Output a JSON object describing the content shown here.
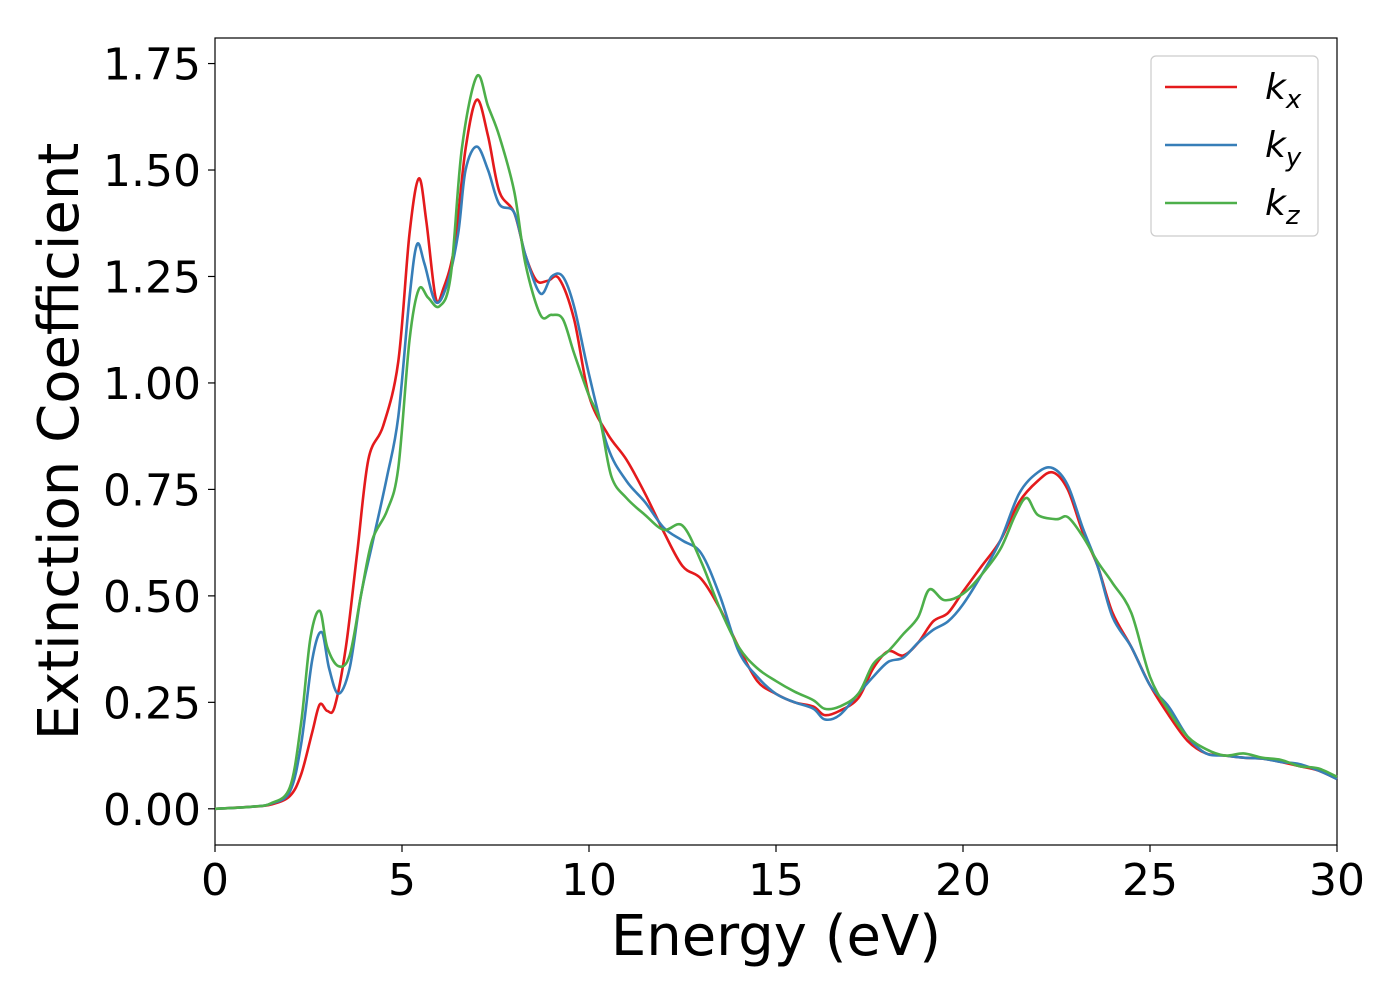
{
  "chart_data": {
    "type": "line",
    "title": "",
    "xlabel": "Energy (eV)",
    "ylabel": "Extinction Coefficient",
    "xlim": [
      0,
      30
    ],
    "ylim": [
      -0.085,
      1.81
    ],
    "xticks": [
      0,
      5,
      10,
      15,
      20,
      25,
      30
    ],
    "xtick_labels": [
      "0",
      "5",
      "10",
      "15",
      "20",
      "25",
      "30"
    ],
    "yticks": [
      0,
      0.25,
      0.5,
      0.75,
      1.0,
      1.25,
      1.5,
      1.75
    ],
    "ytick_labels": [
      "0.00",
      "0.25",
      "0.50",
      "0.75",
      "1.00",
      "1.25",
      "1.50",
      "1.75"
    ],
    "grid": false,
    "legend_position": "top-right",
    "series": [
      {
        "name": "k_x",
        "label_main": "k",
        "label_sub": "x",
        "color": "#e41a1c",
        "points": [
          [
            0,
            0.0
          ],
          [
            1.0,
            0.005
          ],
          [
            1.5,
            0.01
          ],
          [
            2.0,
            0.03
          ],
          [
            2.3,
            0.08
          ],
          [
            2.6,
            0.18
          ],
          [
            2.8,
            0.245
          ],
          [
            3.0,
            0.23
          ],
          [
            3.2,
            0.24
          ],
          [
            3.5,
            0.38
          ],
          [
            3.8,
            0.6
          ],
          [
            4.1,
            0.82
          ],
          [
            4.5,
            0.9
          ],
          [
            4.9,
            1.05
          ],
          [
            5.2,
            1.35
          ],
          [
            5.45,
            1.48
          ],
          [
            5.65,
            1.38
          ],
          [
            5.9,
            1.2
          ],
          [
            6.1,
            1.22
          ],
          [
            6.4,
            1.32
          ],
          [
            6.7,
            1.55
          ],
          [
            7.0,
            1.665
          ],
          [
            7.3,
            1.58
          ],
          [
            7.6,
            1.45
          ],
          [
            8.0,
            1.4
          ],
          [
            8.3,
            1.3
          ],
          [
            8.6,
            1.24
          ],
          [
            8.9,
            1.24
          ],
          [
            9.2,
            1.245
          ],
          [
            9.6,
            1.15
          ],
          [
            10.0,
            0.97
          ],
          [
            10.5,
            0.88
          ],
          [
            11.0,
            0.82
          ],
          [
            11.5,
            0.74
          ],
          [
            12.0,
            0.65
          ],
          [
            12.5,
            0.57
          ],
          [
            13.0,
            0.54
          ],
          [
            13.5,
            0.47
          ],
          [
            14.0,
            0.38
          ],
          [
            14.5,
            0.3
          ],
          [
            15.0,
            0.27
          ],
          [
            15.5,
            0.25
          ],
          [
            16.0,
            0.24
          ],
          [
            16.3,
            0.22
          ],
          [
            16.7,
            0.23
          ],
          [
            17.2,
            0.26
          ],
          [
            17.6,
            0.33
          ],
          [
            18.0,
            0.37
          ],
          [
            18.4,
            0.36
          ],
          [
            18.8,
            0.39
          ],
          [
            19.2,
            0.44
          ],
          [
            19.6,
            0.46
          ],
          [
            20.0,
            0.51
          ],
          [
            20.5,
            0.57
          ],
          [
            21.0,
            0.63
          ],
          [
            21.5,
            0.72
          ],
          [
            22.0,
            0.77
          ],
          [
            22.4,
            0.79
          ],
          [
            22.8,
            0.75
          ],
          [
            23.2,
            0.65
          ],
          [
            23.6,
            0.57
          ],
          [
            24.0,
            0.46
          ],
          [
            24.5,
            0.38
          ],
          [
            25.0,
            0.29
          ],
          [
            25.5,
            0.22
          ],
          [
            26.0,
            0.16
          ],
          [
            26.5,
            0.13
          ],
          [
            27.0,
            0.125
          ],
          [
            27.5,
            0.12
          ],
          [
            28.0,
            0.118
          ],
          [
            28.5,
            0.11
          ],
          [
            29.0,
            0.1
          ],
          [
            29.5,
            0.09
          ],
          [
            30.0,
            0.07
          ]
        ]
      },
      {
        "name": "k_y",
        "label_main": "k",
        "label_sub": "y",
        "color": "#377eb8",
        "points": [
          [
            0,
            0.0
          ],
          [
            1.0,
            0.005
          ],
          [
            1.5,
            0.012
          ],
          [
            2.0,
            0.04
          ],
          [
            2.3,
            0.15
          ],
          [
            2.6,
            0.35
          ],
          [
            2.85,
            0.415
          ],
          [
            3.05,
            0.33
          ],
          [
            3.3,
            0.27
          ],
          [
            3.6,
            0.33
          ],
          [
            3.9,
            0.5
          ],
          [
            4.2,
            0.62
          ],
          [
            4.6,
            0.78
          ],
          [
            4.9,
            0.92
          ],
          [
            5.2,
            1.2
          ],
          [
            5.4,
            1.325
          ],
          [
            5.6,
            1.28
          ],
          [
            5.9,
            1.19
          ],
          [
            6.2,
            1.23
          ],
          [
            6.5,
            1.35
          ],
          [
            6.7,
            1.5
          ],
          [
            7.0,
            1.555
          ],
          [
            7.3,
            1.5
          ],
          [
            7.6,
            1.42
          ],
          [
            8.0,
            1.4
          ],
          [
            8.3,
            1.3
          ],
          [
            8.7,
            1.21
          ],
          [
            9.0,
            1.25
          ],
          [
            9.3,
            1.25
          ],
          [
            9.6,
            1.18
          ],
          [
            10.0,
            1.02
          ],
          [
            10.5,
            0.85
          ],
          [
            11.0,
            0.77
          ],
          [
            11.5,
            0.72
          ],
          [
            12.0,
            0.66
          ],
          [
            12.5,
            0.63
          ],
          [
            13.0,
            0.6
          ],
          [
            13.5,
            0.5
          ],
          [
            14.0,
            0.37
          ],
          [
            14.5,
            0.31
          ],
          [
            15.0,
            0.27
          ],
          [
            15.5,
            0.25
          ],
          [
            16.0,
            0.235
          ],
          [
            16.3,
            0.21
          ],
          [
            16.7,
            0.22
          ],
          [
            17.2,
            0.27
          ],
          [
            17.6,
            0.31
          ],
          [
            18.0,
            0.345
          ],
          [
            18.4,
            0.355
          ],
          [
            18.8,
            0.39
          ],
          [
            19.2,
            0.42
          ],
          [
            19.6,
            0.44
          ],
          [
            20.0,
            0.48
          ],
          [
            20.5,
            0.55
          ],
          [
            21.0,
            0.63
          ],
          [
            21.5,
            0.74
          ],
          [
            22.0,
            0.79
          ],
          [
            22.4,
            0.8
          ],
          [
            22.8,
            0.76
          ],
          [
            23.2,
            0.66
          ],
          [
            23.6,
            0.57
          ],
          [
            24.0,
            0.45
          ],
          [
            24.5,
            0.38
          ],
          [
            25.0,
            0.29
          ],
          [
            25.5,
            0.24
          ],
          [
            26.0,
            0.17
          ],
          [
            26.5,
            0.13
          ],
          [
            27.0,
            0.125
          ],
          [
            27.5,
            0.12
          ],
          [
            28.0,
            0.118
          ],
          [
            28.5,
            0.11
          ],
          [
            29.0,
            0.105
          ],
          [
            29.5,
            0.09
          ],
          [
            30.0,
            0.07
          ]
        ]
      },
      {
        "name": "k_z",
        "label_main": "k",
        "label_sub": "z",
        "color": "#4daf4a",
        "points": [
          [
            0,
            0.0
          ],
          [
            1.0,
            0.005
          ],
          [
            1.5,
            0.013
          ],
          [
            2.0,
            0.05
          ],
          [
            2.3,
            0.2
          ],
          [
            2.55,
            0.4
          ],
          [
            2.8,
            0.465
          ],
          [
            3.0,
            0.38
          ],
          [
            3.3,
            0.335
          ],
          [
            3.6,
            0.36
          ],
          [
            3.9,
            0.5
          ],
          [
            4.2,
            0.63
          ],
          [
            4.6,
            0.7
          ],
          [
            4.9,
            0.8
          ],
          [
            5.2,
            1.1
          ],
          [
            5.45,
            1.22
          ],
          [
            5.7,
            1.2
          ],
          [
            6.0,
            1.18
          ],
          [
            6.3,
            1.25
          ],
          [
            6.6,
            1.55
          ],
          [
            7.0,
            1.72
          ],
          [
            7.3,
            1.65
          ],
          [
            7.6,
            1.58
          ],
          [
            8.0,
            1.45
          ],
          [
            8.3,
            1.28
          ],
          [
            8.7,
            1.16
          ],
          [
            9.0,
            1.16
          ],
          [
            9.3,
            1.15
          ],
          [
            9.6,
            1.07
          ],
          [
            10.0,
            0.97
          ],
          [
            10.3,
            0.91
          ],
          [
            10.6,
            0.78
          ],
          [
            11.0,
            0.73
          ],
          [
            11.5,
            0.69
          ],
          [
            12.0,
            0.655
          ],
          [
            12.5,
            0.665
          ],
          [
            13.0,
            0.58
          ],
          [
            13.5,
            0.47
          ],
          [
            14.0,
            0.38
          ],
          [
            14.5,
            0.33
          ],
          [
            15.0,
            0.3
          ],
          [
            15.5,
            0.275
          ],
          [
            16.0,
            0.255
          ],
          [
            16.3,
            0.235
          ],
          [
            16.7,
            0.24
          ],
          [
            17.2,
            0.27
          ],
          [
            17.6,
            0.34
          ],
          [
            18.0,
            0.37
          ],
          [
            18.4,
            0.41
          ],
          [
            18.8,
            0.45
          ],
          [
            19.1,
            0.515
          ],
          [
            19.5,
            0.49
          ],
          [
            20.0,
            0.505
          ],
          [
            20.5,
            0.55
          ],
          [
            21.0,
            0.61
          ],
          [
            21.4,
            0.69
          ],
          [
            21.7,
            0.73
          ],
          [
            22.0,
            0.69
          ],
          [
            22.5,
            0.68
          ],
          [
            22.8,
            0.685
          ],
          [
            23.2,
            0.64
          ],
          [
            23.6,
            0.58
          ],
          [
            24.0,
            0.53
          ],
          [
            24.5,
            0.46
          ],
          [
            25.0,
            0.31
          ],
          [
            25.5,
            0.23
          ],
          [
            26.0,
            0.17
          ],
          [
            26.5,
            0.14
          ],
          [
            27.0,
            0.125
          ],
          [
            27.5,
            0.13
          ],
          [
            28.0,
            0.12
          ],
          [
            28.5,
            0.115
          ],
          [
            29.0,
            0.1
          ],
          [
            29.5,
            0.095
          ],
          [
            30.0,
            0.075
          ]
        ]
      }
    ]
  }
}
